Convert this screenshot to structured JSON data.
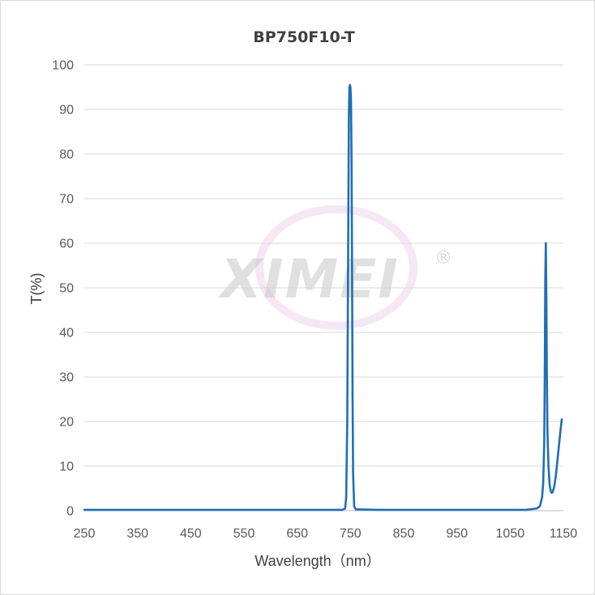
{
  "chart_data": {
    "type": "line",
    "title": "BP750F10-T",
    "xlabel": "Wavelength（nm）",
    "ylabel": "T(%)",
    "xlim": [
      250,
      1150
    ],
    "ylim": [
      0,
      100
    ],
    "x_ticks": [
      250,
      350,
      450,
      550,
      650,
      750,
      850,
      950,
      1050,
      1150
    ],
    "y_ticks": [
      0,
      10,
      20,
      30,
      40,
      50,
      60,
      70,
      80,
      90,
      100
    ],
    "grid": true,
    "legend": "none",
    "series": [
      {
        "color": "#1f6fb5",
        "points": [
          [
            250,
            0.2
          ],
          [
            500,
            0.2
          ],
          [
            700,
            0.2
          ],
          [
            735,
            0.2
          ],
          [
            740,
            0.5
          ],
          [
            742,
            3
          ],
          [
            744,
            20
          ],
          [
            746,
            65
          ],
          [
            747,
            88
          ],
          [
            748,
            95
          ],
          [
            749,
            95.5
          ],
          [
            750,
            95
          ],
          [
            751,
            92
          ],
          [
            752,
            80
          ],
          [
            753,
            55
          ],
          [
            754,
            25
          ],
          [
            755,
            8
          ],
          [
            757,
            1
          ],
          [
            760,
            0.3
          ],
          [
            800,
            0.2
          ],
          [
            900,
            0.2
          ],
          [
            1000,
            0.2
          ],
          [
            1080,
            0.2
          ],
          [
            1100,
            0.5
          ],
          [
            1106,
            1
          ],
          [
            1110,
            3
          ],
          [
            1112,
            6
          ],
          [
            1114,
            15
          ],
          [
            1115,
            30
          ],
          [
            1116,
            52
          ],
          [
            1117,
            60
          ],
          [
            1118,
            48
          ],
          [
            1119,
            30
          ],
          [
            1120,
            18
          ],
          [
            1122,
            10
          ],
          [
            1124,
            6
          ],
          [
            1126,
            4.5
          ],
          [
            1128,
            4
          ],
          [
            1130,
            4.2
          ],
          [
            1133,
            5.5
          ],
          [
            1136,
            8
          ],
          [
            1139,
            11.5
          ],
          [
            1142,
            15
          ],
          [
            1145,
            18.5
          ],
          [
            1147,
            20.5
          ]
        ]
      }
    ]
  },
  "watermark": {
    "text": "XIMEI",
    "mark": "®"
  }
}
